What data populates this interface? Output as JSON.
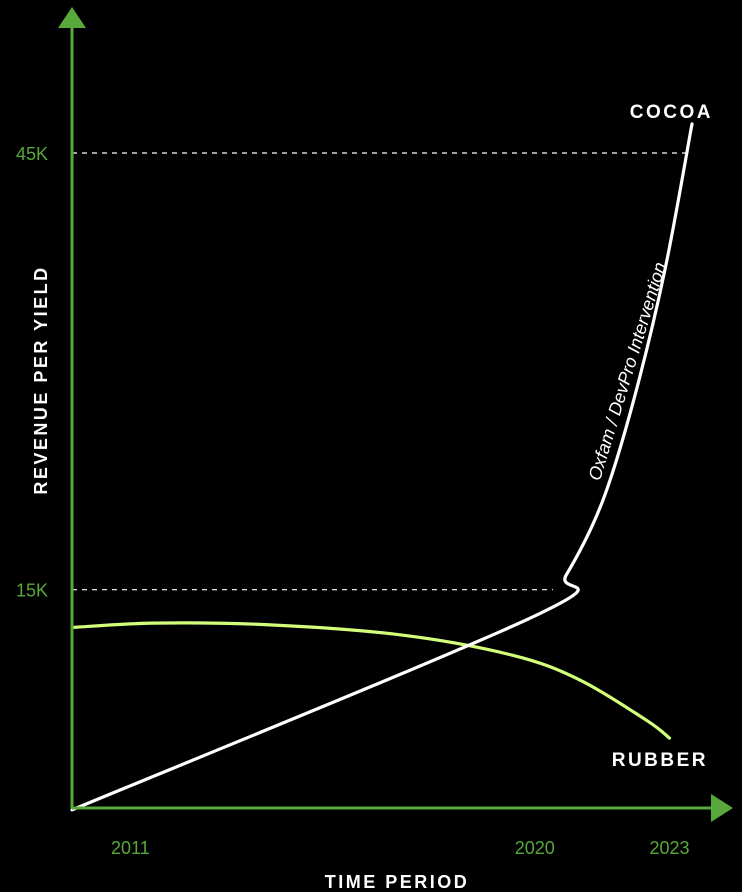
{
  "chart_data": {
    "type": "line",
    "xlabel": "TIME PERIOD",
    "ylabel": "REVENUE PER YIELD",
    "x_ticks": [
      "2011",
      "2020",
      "2023"
    ],
    "y_ticks": [
      "15K",
      "45K"
    ],
    "series": [
      {
        "name": "COCOA",
        "color": "#ffffff",
        "points": [
          {
            "year": 2009.7,
            "value": -131
          },
          {
            "year": 2020,
            "value": 13200
          },
          {
            "year": 2020.7,
            "value": 16000
          },
          {
            "year": 2021.5,
            "value": 21000
          },
          {
            "year": 2022.2,
            "value": 28000
          },
          {
            "year": 2022.9,
            "value": 37000
          },
          {
            "year": 2023.5,
            "value": 47000
          }
        ]
      },
      {
        "name": "RUBBER",
        "color": "#d4ff7a",
        "points": [
          {
            "year": 2009.7,
            "value": 12400
          },
          {
            "year": 2011.5,
            "value": 12700
          },
          {
            "year": 2014,
            "value": 12600
          },
          {
            "year": 2017,
            "value": 11900
          },
          {
            "year": 2019.5,
            "value": 10500
          },
          {
            "year": 2021,
            "value": 8800
          },
          {
            "year": 2022.5,
            "value": 6000
          },
          {
            "year": 2023,
            "value": 4800
          }
        ]
      }
    ],
    "reference_lines": [
      {
        "value": 15000,
        "style": "dashed"
      },
      {
        "value": 45000,
        "style": "dashed"
      }
    ],
    "annotation": "Oxfam / DevPro Intervention",
    "grid": false,
    "colors": {
      "background": "#000000",
      "axis": "#58a83a",
      "tick_text": "#58a83a",
      "label_text": "#ffffff"
    }
  }
}
